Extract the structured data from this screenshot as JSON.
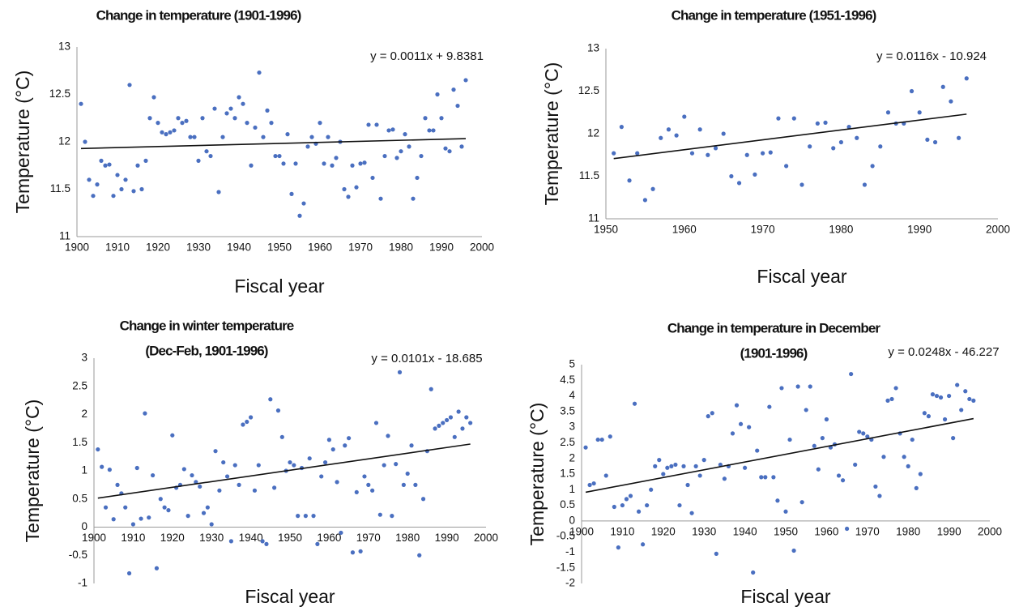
{
  "chart_data": [
    {
      "type": "scatter",
      "title": [
        "Change in temperature (1901-1996)"
      ],
      "x_label": "Fiscal year",
      "y_label": "Temperature (°C)",
      "color": "#4a6fc0",
      "x": [
        1901,
        1902,
        1903,
        1904,
        1905,
        1906,
        1907,
        1908,
        1909,
        1910,
        1911,
        1912,
        1913,
        1914,
        1915,
        1916,
        1917,
        1918,
        1919,
        1920,
        1921,
        1922,
        1923,
        1924,
        1925,
        1926,
        1927,
        1928,
        1929,
        1930,
        1931,
        1932,
        1933,
        1934,
        1935,
        1936,
        1937,
        1938,
        1939,
        1940,
        1941,
        1942,
        1943,
        1944,
        1945,
        1946,
        1947,
        1948,
        1949,
        1950,
        1951,
        1952,
        1953,
        1954,
        1955,
        1956,
        1957,
        1958,
        1959,
        1960,
        1961,
        1962,
        1963,
        1964,
        1965,
        1966,
        1967,
        1968,
        1969,
        1970,
        1971,
        1972,
        1973,
        1974,
        1975,
        1976,
        1977,
        1978,
        1979,
        1980,
        1981,
        1982,
        1983,
        1984,
        1985,
        1986,
        1987,
        1988,
        1989,
        1990,
        1991,
        1992,
        1993,
        1994,
        1995,
        1996
      ],
      "values": [
        12.4,
        12.0,
        11.6,
        11.43,
        11.55,
        11.8,
        11.75,
        11.76,
        11.43,
        11.65,
        11.5,
        11.6,
        12.6,
        11.48,
        11.75,
        11.5,
        11.8,
        12.25,
        12.47,
        12.2,
        12.1,
        12.08,
        12.1,
        12.12,
        12.25,
        12.2,
        12.22,
        12.05,
        12.05,
        11.8,
        12.25,
        11.9,
        11.85,
        12.35,
        11.47,
        12.05,
        12.3,
        12.35,
        12.25,
        12.47,
        12.4,
        12.2,
        11.75,
        12.15,
        12.73,
        12.05,
        12.33,
        12.2,
        11.85,
        11.85,
        11.77,
        12.08,
        11.45,
        11.77,
        11.22,
        11.35,
        11.95,
        12.05,
        11.98,
        12.2,
        11.77,
        12.05,
        11.75,
        11.83,
        12.0,
        11.5,
        11.42,
        11.75,
        11.52,
        11.77,
        11.78,
        12.18,
        11.62,
        12.18,
        11.4,
        11.85,
        12.12,
        12.13,
        11.83,
        11.9,
        12.08,
        11.95,
        11.4,
        11.62,
        11.85,
        12.25,
        12.12,
        12.12,
        12.5,
        12.25,
        11.93,
        11.9,
        12.55,
        12.38,
        11.95,
        12.65
      ],
      "trendline": {
        "slope": 0.0011,
        "intercept": 9.8381,
        "label": "y = 0.0011x + 9.8381"
      },
      "xlim": [
        1900,
        2000
      ],
      "xticks": [
        1900,
        1910,
        1920,
        1930,
        1940,
        1950,
        1960,
        1970,
        1980,
        1990,
        2000
      ],
      "ylim": [
        11,
        13
      ],
      "yticks": [
        11,
        11.5,
        12,
        12.5,
        13
      ]
    },
    {
      "type": "scatter",
      "title": [
        "Change in temperature (1951-1996)"
      ],
      "x_label": "Fiscal year",
      "y_label": "Temperature (°C)",
      "color": "#4a6fc0",
      "x": [
        1951,
        1952,
        1953,
        1954,
        1955,
        1956,
        1957,
        1958,
        1959,
        1960,
        1961,
        1962,
        1963,
        1964,
        1965,
        1966,
        1967,
        1968,
        1969,
        1970,
        1971,
        1972,
        1973,
        1974,
        1975,
        1976,
        1977,
        1978,
        1979,
        1980,
        1981,
        1982,
        1983,
        1984,
        1985,
        1986,
        1987,
        1988,
        1989,
        1990,
        1991,
        1992,
        1993,
        1994,
        1995,
        1996
      ],
      "values": [
        11.77,
        12.08,
        11.45,
        11.77,
        11.22,
        11.35,
        11.95,
        12.05,
        11.98,
        12.2,
        11.77,
        12.05,
        11.75,
        11.83,
        12.0,
        11.5,
        11.42,
        11.75,
        11.52,
        11.77,
        11.78,
        12.18,
        11.62,
        12.18,
        11.4,
        11.85,
        12.12,
        12.13,
        11.83,
        11.9,
        12.08,
        11.95,
        11.4,
        11.62,
        11.85,
        12.25,
        12.12,
        12.12,
        12.5,
        12.25,
        11.93,
        11.9,
        12.55,
        12.38,
        11.95,
        12.65
      ],
      "trendline": {
        "slope": 0.0116,
        "intercept": -10.924,
        "label": "y = 0.0116x - 10.924"
      },
      "xlim": [
        1950,
        2000
      ],
      "xticks": [
        1950,
        1960,
        1970,
        1980,
        1990,
        2000
      ],
      "ylim": [
        11,
        13
      ],
      "yticks": [
        11,
        11.5,
        12,
        12.5,
        13
      ]
    },
    {
      "type": "scatter",
      "title": [
        "Change in winter temperature",
        "(Dec-Feb, 1901-1996)"
      ],
      "x_label": "Fiscal year",
      "y_label": "Temperature (°C)",
      "color": "#4a6fc0",
      "x": [
        1901,
        1902,
        1903,
        1904,
        1905,
        1906,
        1907,
        1908,
        1909,
        1910,
        1911,
        1912,
        1913,
        1914,
        1915,
        1916,
        1917,
        1918,
        1919,
        1920,
        1921,
        1922,
        1923,
        1924,
        1925,
        1926,
        1927,
        1928,
        1929,
        1930,
        1931,
        1932,
        1933,
        1934,
        1935,
        1936,
        1937,
        1938,
        1939,
        1940,
        1941,
        1942,
        1943,
        1944,
        1945,
        1946,
        1947,
        1948,
        1949,
        1950,
        1951,
        1952,
        1953,
        1954,
        1955,
        1956,
        1957,
        1958,
        1959,
        1960,
        1961,
        1962,
        1963,
        1964,
        1965,
        1966,
        1967,
        1968,
        1969,
        1970,
        1971,
        1972,
        1973,
        1974,
        1975,
        1976,
        1977,
        1978,
        1979,
        1980,
        1981,
        1982,
        1983,
        1984,
        1985,
        1986,
        1987,
        1988,
        1989,
        1990,
        1991,
        1992,
        1993,
        1994,
        1995,
        1996
      ],
      "values": [
        1.38,
        1.07,
        0.35,
        1.02,
        0.14,
        0.75,
        0.6,
        0.35,
        -0.82,
        0.05,
        1.05,
        0.15,
        2.02,
        0.17,
        0.92,
        -0.73,
        0.5,
        0.35,
        0.3,
        1.63,
        0.7,
        0.75,
        1.03,
        0.2,
        0.92,
        0.8,
        0.72,
        0.25,
        0.35,
        0.05,
        1.35,
        0.65,
        1.15,
        0.9,
        -0.25,
        1.1,
        0.75,
        1.82,
        1.87,
        1.95,
        0.65,
        1.1,
        -0.25,
        -0.3,
        2.27,
        0.7,
        2.07,
        1.6,
        1.0,
        1.15,
        1.1,
        0.2,
        1.05,
        0.2,
        1.22,
        0.2,
        -0.3,
        0.9,
        1.15,
        1.55,
        1.38,
        0.8,
        -0.1,
        1.45,
        1.58,
        -0.45,
        0.62,
        -0.43,
        0.9,
        0.75,
        0.65,
        1.85,
        0.22,
        1.1,
        1.62,
        0.2,
        1.12,
        2.75,
        0.75,
        0.95,
        1.45,
        0.75,
        -0.5,
        0.5,
        1.35,
        2.45,
        1.75,
        1.8,
        1.85,
        1.9,
        1.95,
        1.6,
        2.05,
        1.75,
        1.95,
        1.85
      ],
      "trendline": {
        "slope": 0.0101,
        "intercept": -18.685,
        "label": "y = 0.0101x - 18.685"
      },
      "xlim": [
        1900,
        2000
      ],
      "xticks": [
        1900,
        1910,
        1920,
        1930,
        1940,
        1950,
        1960,
        1970,
        1980,
        1990,
        2000
      ],
      "ylim": [
        -1,
        3
      ],
      "yticks": [
        -1,
        -0.5,
        0,
        0.5,
        1,
        1.5,
        2,
        2.5,
        3
      ]
    },
    {
      "type": "scatter",
      "title": [
        "Change in temperature in December",
        "(1901-1996)"
      ],
      "x_label": "Fiscal year",
      "y_label": "Temperature (°C)",
      "color": "#4a6fc0",
      "x": [
        1901,
        1902,
        1903,
        1904,
        1905,
        1906,
        1907,
        1908,
        1909,
        1910,
        1911,
        1912,
        1913,
        1914,
        1915,
        1916,
        1917,
        1918,
        1919,
        1920,
        1921,
        1922,
        1923,
        1924,
        1925,
        1926,
        1927,
        1928,
        1929,
        1930,
        1931,
        1932,
        1933,
        1934,
        1935,
        1936,
        1937,
        1938,
        1939,
        1940,
        1941,
        1942,
        1943,
        1944,
        1945,
        1946,
        1947,
        1948,
        1949,
        1950,
        1951,
        1952,
        1953,
        1954,
        1955,
        1956,
        1957,
        1958,
        1959,
        1960,
        1961,
        1962,
        1963,
        1964,
        1965,
        1966,
        1967,
        1968,
        1969,
        1970,
        1971,
        1972,
        1973,
        1974,
        1975,
        1976,
        1977,
        1978,
        1979,
        1980,
        1981,
        1982,
        1983,
        1984,
        1985,
        1986,
        1987,
        1988,
        1989,
        1990,
        1991,
        1992,
        1993,
        1994,
        1995,
        1996
      ],
      "values": [
        2.35,
        1.15,
        1.2,
        2.6,
        2.6,
        1.45,
        2.7,
        0.45,
        -0.85,
        0.5,
        0.7,
        0.8,
        3.75,
        0.3,
        -0.75,
        0.5,
        1.0,
        1.75,
        1.95,
        1.5,
        1.7,
        1.75,
        1.8,
        0.5,
        1.75,
        1.15,
        0.25,
        1.75,
        1.45,
        1.95,
        3.35,
        3.45,
        -1.05,
        1.8,
        1.35,
        1.75,
        2.8,
        3.7,
        3.1,
        1.7,
        3.0,
        -1.65,
        2.25,
        1.4,
        1.4,
        3.65,
        1.4,
        0.65,
        4.25,
        0.3,
        2.6,
        -0.95,
        4.3,
        0.6,
        3.55,
        4.3,
        2.4,
        1.65,
        2.65,
        3.25,
        2.35,
        2.45,
        1.45,
        1.3,
        -0.25,
        4.7,
        1.8,
        2.85,
        2.8,
        2.7,
        2.6,
        1.1,
        0.8,
        2.05,
        3.85,
        3.9,
        4.25,
        2.8,
        2.05,
        1.75,
        2.6,
        1.05,
        1.5,
        3.45,
        3.35,
        4.05,
        4.0,
        3.95,
        3.25,
        4.0,
        2.65,
        4.35,
        3.55,
        4.15,
        3.9,
        3.85
      ],
      "trendline": {
        "slope": 0.0248,
        "intercept": -46.227,
        "label": "y = 0.0248x - 46.227"
      },
      "xlim": [
        1900,
        2000
      ],
      "xticks": [
        1900,
        1910,
        1920,
        1930,
        1940,
        1950,
        1960,
        1970,
        1980,
        1990,
        2000
      ],
      "ylim": [
        -2,
        5
      ],
      "yticks": [
        -2,
        -1.5,
        -1,
        -0.5,
        0,
        0.5,
        1,
        1.5,
        2,
        2.5,
        3,
        3.5,
        4,
        4.5,
        5
      ]
    }
  ]
}
